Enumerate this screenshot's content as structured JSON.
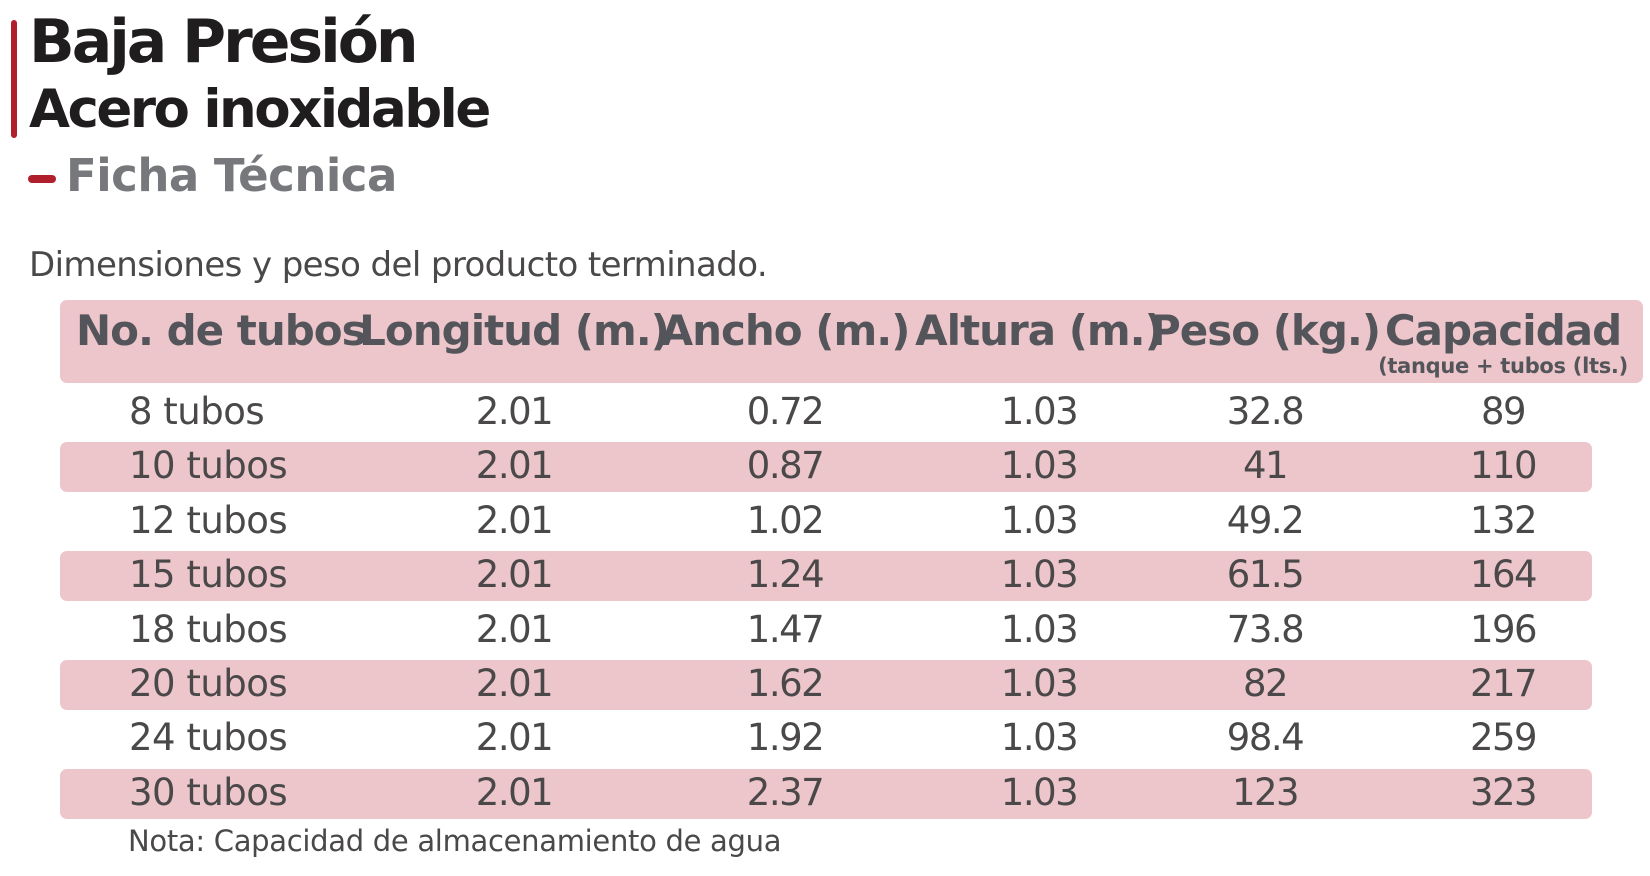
{
  "colors": {
    "accent": "#b11f2c",
    "band": "#ecc6cb",
    "title": "#1f1d1e",
    "subtitle": "#77787b",
    "text": "#4a4849"
  },
  "header": {
    "title_line1": "Baja Presión",
    "title_line2": "Acero inoxidable",
    "subtitle": "Ficha Técnica"
  },
  "description": "Dimensiones y peso del producto terminado.",
  "table": {
    "columns": [
      {
        "label": "No. de tubos",
        "sublabel": ""
      },
      {
        "label": "Longitud (m.)",
        "sublabel": ""
      },
      {
        "label": "Ancho (m.)",
        "sublabel": ""
      },
      {
        "label": "Altura (m.)",
        "sublabel": ""
      },
      {
        "label": "Peso (kg.)",
        "sublabel": ""
      },
      {
        "label": "Capacidad",
        "sublabel": "(tanque +  tubos (lts.)"
      }
    ],
    "rows": [
      [
        "8 tubos",
        "2.01",
        "0.72",
        "1.03",
        "32.8",
        "89"
      ],
      [
        "10 tubos",
        "2.01",
        "0.87",
        "1.03",
        "41",
        "110"
      ],
      [
        "12 tubos",
        "2.01",
        "1.02",
        "1.03",
        "49.2",
        "132"
      ],
      [
        "15 tubos",
        "2.01",
        "1.24",
        "1.03",
        "61.5",
        "164"
      ],
      [
        "18 tubos",
        "2.01",
        "1.47",
        "1.03",
        "73.8",
        "196"
      ],
      [
        "20 tubos",
        "2.01",
        "1.62",
        "1.03",
        "82",
        "217"
      ],
      [
        "24 tubos",
        "2.01",
        "1.92",
        "1.03",
        "98.4",
        "259"
      ],
      [
        "30 tubos",
        "2.01",
        "2.37",
        "1.03",
        "123",
        "323"
      ]
    ]
  },
  "note": "Nota: Capacidad de almacenamiento de agua"
}
